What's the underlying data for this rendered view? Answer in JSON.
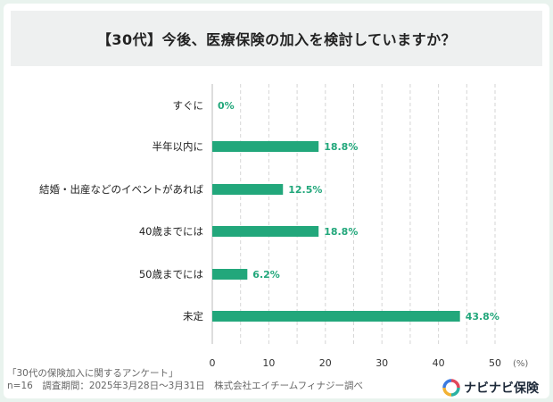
{
  "title": "【30代】今後、医療保険の加入を検討していますか？",
  "chart_data": {
    "type": "bar",
    "orientation": "horizontal",
    "categories": [
      "すぐに",
      "半年以内に",
      "結婚・出産などのイベントがあれば",
      "40歳までには",
      "50歳までには",
      "未定"
    ],
    "values": [
      0,
      18.8,
      12.5,
      18.8,
      6.2,
      43.8
    ],
    "value_labels": [
      "0%",
      "18.8%",
      "12.5%",
      "18.8%",
      "6.2%",
      "43.8%"
    ],
    "xlim": [
      0,
      50
    ],
    "xticks": [
      0,
      10,
      20,
      30,
      40,
      50
    ],
    "xunit": "(%)",
    "grid": "vertical-dashed",
    "bar_color": "#22a77b",
    "label_color": "#22a77b"
  },
  "footer": {
    "survey_name": "「30代の保険加入に関するアンケート」",
    "details": "n=16　調査期間：2025年3月28日～3月31日　株式会社エイチームフィナジー調べ"
  },
  "logo": {
    "text": "ナビナビ保険"
  }
}
